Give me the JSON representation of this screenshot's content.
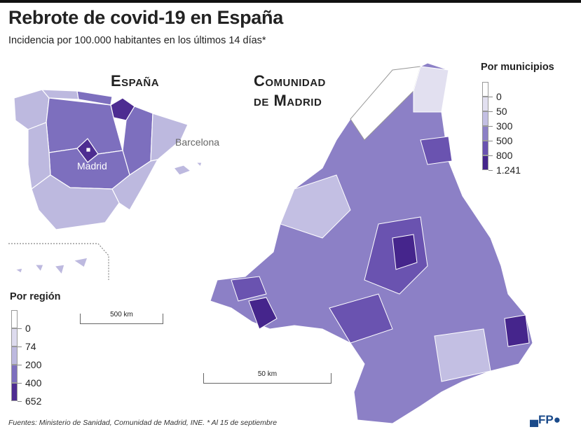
{
  "title": "Rebrote de covid-19 en España",
  "subtitle": "Incidencia por 100.000 habitantes en los últimos 14 días*",
  "spain_map": {
    "label": "España",
    "cities": [
      "Madrid",
      "Barcelona"
    ],
    "scale": "500 km"
  },
  "madrid_map": {
    "label_line1": "Comunidad",
    "label_line2": "de Madrid",
    "scale": "50 km"
  },
  "legend_region": {
    "title": "Por región",
    "ticks": [
      "0",
      "74",
      "200",
      "400",
      "652"
    ],
    "colors": [
      "#ffffff",
      "#dddbee",
      "#bdb9df",
      "#7d6fbe",
      "#4d2c91"
    ]
  },
  "legend_municipios": {
    "title": "Por municipios",
    "ticks": [
      "0",
      "50",
      "300",
      "500",
      "800",
      "1.241"
    ],
    "colors": [
      "#ffffff",
      "#e2e0f0",
      "#c3bfe3",
      "#8c80c6",
      "#6a53b0",
      "#45258c"
    ]
  },
  "footer": "Fuentes: Ministerio de Sanidad, Comunidad de Madrid, INE. * Al 15 de septiembre",
  "logo": "AFP"
}
